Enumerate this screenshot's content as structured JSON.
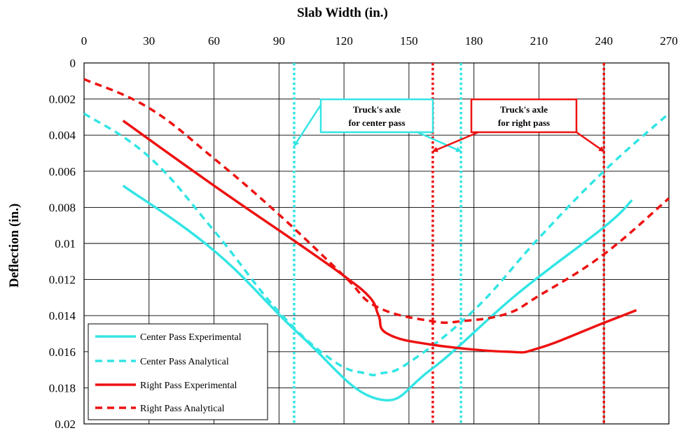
{
  "chart_data": {
    "type": "line",
    "xlabel": "Slab Width (in.)",
    "ylabel": "Deflection (in.)",
    "xlim": [
      0,
      270
    ],
    "ylim": [
      0,
      0.02
    ],
    "y_inverted": true,
    "x_axis_position": "top",
    "grid": true,
    "legend_placement": "bottom-left",
    "xticks": [
      "0",
      "30",
      "60",
      "90",
      "120",
      "150",
      "180",
      "210",
      "240",
      "270"
    ],
    "yticks": [
      "0",
      "0.002",
      "0.004",
      "0.006",
      "0.008",
      "0.01",
      "0.012",
      "0.014",
      "0.016",
      "0.018",
      "0.02"
    ],
    "series": [
      {
        "name": "Center Pass Experimental",
        "color": "#33e5e5",
        "dash": "solid",
        "x": [
          18,
          60,
          100,
          135,
          160,
          200,
          240,
          253
        ],
        "y": [
          0.0068,
          0.0104,
          0.0151,
          0.0186,
          0.017,
          0.0128,
          0.0091,
          0.0076
        ]
      },
      {
        "name": "Center Pass Analytical",
        "color": "#33e5e5",
        "dash": "dashed",
        "x": [
          0,
          30,
          60,
          90,
          115,
          130,
          137,
          150,
          180,
          210,
          240,
          270
        ],
        "y": [
          0.0028,
          0.0052,
          0.0093,
          0.0138,
          0.0165,
          0.0172,
          0.0172,
          0.0166,
          0.0137,
          0.0097,
          0.006,
          0.0028
        ]
      },
      {
        "name": "Right Pass Experimental",
        "color": "#ee1111",
        "dash": "solid",
        "x": [
          18,
          60,
          100,
          120,
          132,
          136,
          140,
          160,
          195,
          210,
          240,
          255
        ],
        "y": [
          0.0032,
          0.0068,
          0.0101,
          0.0118,
          0.013,
          0.014,
          0.015,
          0.0156,
          0.016,
          0.0158,
          0.0144,
          0.0137
        ]
      },
      {
        "name": "Right Pass Analytical",
        "color": "#ee1111",
        "dash": "dashed",
        "x": [
          0,
          30,
          60,
          90,
          120,
          135,
          160,
          175,
          195,
          210,
          240,
          270
        ],
        "y": [
          0.0009,
          0.0025,
          0.0053,
          0.0084,
          0.0118,
          0.0135,
          0.0143,
          0.0143,
          0.0139,
          0.0129,
          0.0106,
          0.0075
        ]
      }
    ],
    "axle_lines": [
      {
        "group": "center",
        "x": 97,
        "color": "#33e5e5"
      },
      {
        "group": "center",
        "x": 174,
        "color": "#33e5e5"
      },
      {
        "group": "right",
        "x": 161,
        "color": "#ee1111"
      },
      {
        "group": "right",
        "x": 240,
        "color": "#ee1111"
      }
    ],
    "annotations": [
      {
        "id": "center",
        "lines": [
          "Truck's axle",
          "for center pass"
        ],
        "color": "#33e5e5",
        "arrow_targets": [
          [
            97,
            0.0046
          ],
          [
            174,
            0.0049
          ]
        ]
      },
      {
        "id": "right",
        "lines": [
          "Truck's axle",
          "for right pass"
        ],
        "color": "#ee1111",
        "arrow_targets": [
          [
            161,
            0.0049
          ],
          [
            240,
            0.0049
          ]
        ]
      }
    ]
  }
}
